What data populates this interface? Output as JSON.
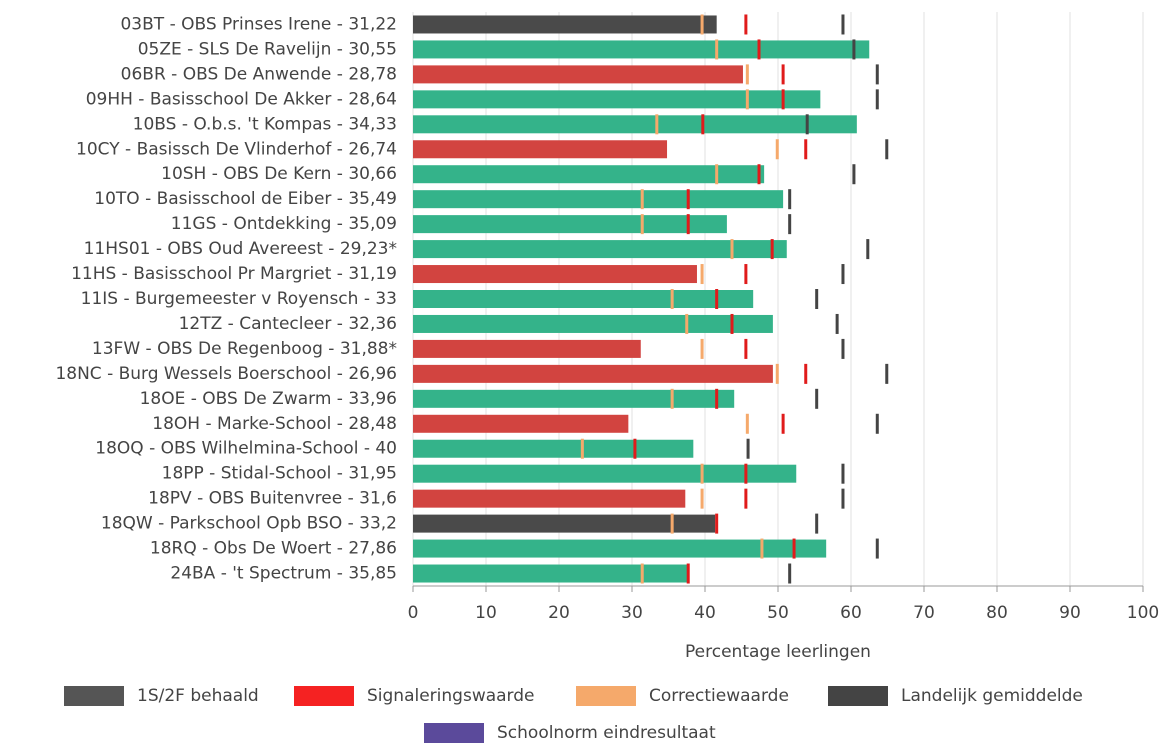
{
  "chart_data": {
    "type": "bar",
    "orientation": "horizontal",
    "x_label": "Percentage leerlingen",
    "categories": [
      "03BT - OBS Prinses Irene - 31,22",
      "05ZE - SLS De Ravelijn - 30,55",
      "06BR - OBS De Anwende - 28,78",
      "09HH - Basisschool De Akker - 28,64",
      "10BS - O.b.s. 't Kompas - 34,33",
      "10CY - Basissch De Vlinderhof - 26,74",
      "10SH - OBS De Kern - 30,66",
      "10TO - Basisschool de Eiber - 35,49",
      "11GS - Ontdekking - 35,09",
      "11HS01 - OBS Oud Avereest - 29,23*",
      "11HS - Basisschool Pr Margriet - 31,19",
      "11IS - Burgemeester v Royensch - 33",
      "12TZ - Cantecleer - 32,36",
      "13FW - OBS De Regenboog - 31,88*",
      "18NC - Burg Wessels Boerschool - 26,96",
      "18OE - OBS De Zwarm - 33,96",
      "18OH - Marke-School - 28,48",
      "18OQ - OBS Wilhelmina-School - 40",
      "18PP - Stidal-School - 31,95",
      "18PV - OBS Buitenvree - 31,6",
      "18QW - Parkschool  Opb BSO - 33,2",
      "18RQ - Obs De Woert - 27,86",
      "24BA - 't Spectrum - 35,85"
    ],
    "series": [
      {
        "name": "1S/2F behaald",
        "color": "#555555",
        "kind": "bar",
        "values": [
          41.6,
          62.5,
          45.2,
          55.8,
          60.8,
          34.8,
          48.1,
          50.7,
          43.0,
          51.2,
          38.9,
          46.6,
          49.3,
          31.2,
          49.3,
          44.0,
          29.5,
          38.4,
          52.5,
          37.3,
          41.4,
          56.6,
          37.8
        ],
        "colors": [
          "#4a4a4a",
          "#34b38a",
          "#d24440",
          "#34b38a",
          "#34b38a",
          "#d24440",
          "#34b38a",
          "#34b38a",
          "#34b38a",
          "#34b38a",
          "#d24440",
          "#34b38a",
          "#34b38a",
          "#d24440",
          "#d24440",
          "#34b38a",
          "#d24440",
          "#34b38a",
          "#34b38a",
          "#d24440",
          "#4a4a4a",
          "#34b38a",
          "#34b38a"
        ]
      },
      {
        "name": "Signaleringswaarde",
        "color": "#f52222",
        "kind": "marker",
        "marker_color": "#e01b1b",
        "values": [
          45.6,
          47.4,
          50.7,
          50.7,
          39.7,
          53.8,
          47.4,
          37.7,
          37.7,
          49.2,
          45.6,
          41.6,
          43.7,
          45.6,
          53.8,
          41.6,
          50.7,
          30.4,
          45.6,
          45.6,
          41.6,
          52.2,
          37.7
        ]
      },
      {
        "name": "Correctiewaarde",
        "color": "#f5a96b",
        "kind": "marker",
        "values": [
          39.6,
          41.6,
          45.8,
          45.8,
          33.4,
          49.9,
          41.6,
          31.4,
          31.4,
          43.7,
          39.6,
          35.5,
          37.5,
          39.6,
          49.9,
          35.5,
          45.8,
          23.2,
          39.6,
          39.6,
          35.5,
          47.8,
          31.4
        ]
      },
      {
        "name": "Landelijk gemiddelde",
        "color": "#444444",
        "kind": "marker",
        "values": [
          58.9,
          60.4,
          63.6,
          63.6,
          54.0,
          64.9,
          60.4,
          51.6,
          51.6,
          62.3,
          58.9,
          55.3,
          58.1,
          58.9,
          64.9,
          55.3,
          63.6,
          45.9,
          58.9,
          58.9,
          55.3,
          63.6,
          51.6
        ]
      },
      {
        "name": "Schoolnorm eindresultaat",
        "color": "#5b4a9b",
        "kind": "marker"
      }
    ],
    "xlim": [
      0,
      100
    ],
    "xticks": [
      0,
      10,
      20,
      30,
      40,
      50,
      60,
      70,
      80,
      90,
      100
    ],
    "grid": true
  }
}
